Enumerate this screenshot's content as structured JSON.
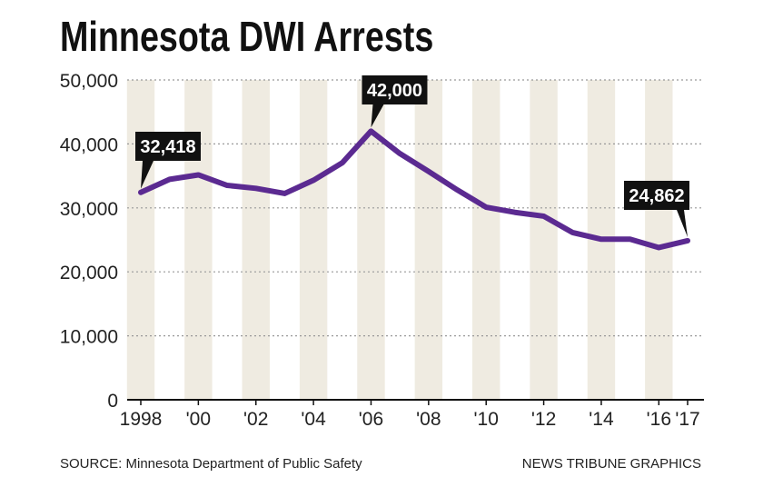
{
  "chart_data": {
    "type": "line",
    "title": "Minnesota DWI Arrests",
    "xlabel": "",
    "ylabel": "",
    "x": [
      1998,
      1999,
      2000,
      2001,
      2002,
      2003,
      2004,
      2005,
      2006,
      2007,
      2008,
      2009,
      2010,
      2011,
      2012,
      2013,
      2014,
      2015,
      2016,
      2017
    ],
    "series": [
      {
        "name": "DWI arrests",
        "color": "#5b2a91",
        "values": [
          32418,
          34460,
          35160,
          33520,
          33050,
          32250,
          34320,
          37040,
          42000,
          38500,
          35700,
          32800,
          30100,
          29300,
          28700,
          26150,
          25100,
          25100,
          23800,
          24862
        ]
      }
    ],
    "ylim": [
      0,
      50000
    ],
    "y_ticks": [
      0,
      10000,
      20000,
      30000,
      40000,
      50000
    ],
    "y_tick_labels": [
      "0",
      "10,000",
      "20,000",
      "30,000",
      "40,000",
      "50,000"
    ],
    "x_ticks": [
      1998,
      2000,
      2002,
      2004,
      2006,
      2008,
      2010,
      2012,
      2014,
      2016,
      2017
    ],
    "x_tick_labels": [
      "1998",
      "'00",
      "'02",
      "'04",
      "'06",
      "'08",
      "'10",
      "'12",
      "'14",
      "'16",
      "'17"
    ],
    "grid": "horizontal dotted",
    "shaded_bands": "even years",
    "annotations": [
      {
        "x": 1998,
        "label": "32,418"
      },
      {
        "x": 2006,
        "label": "42,000"
      },
      {
        "x": 2017,
        "label": "24,862"
      }
    ],
    "source": "SOURCE: Minnesota Department of Public Safety",
    "credit": "NEWS TRIBUNE GRAPHICS",
    "colors": {
      "band": "#efebe1",
      "line": "#5b2a91",
      "callout": "#111111"
    }
  }
}
